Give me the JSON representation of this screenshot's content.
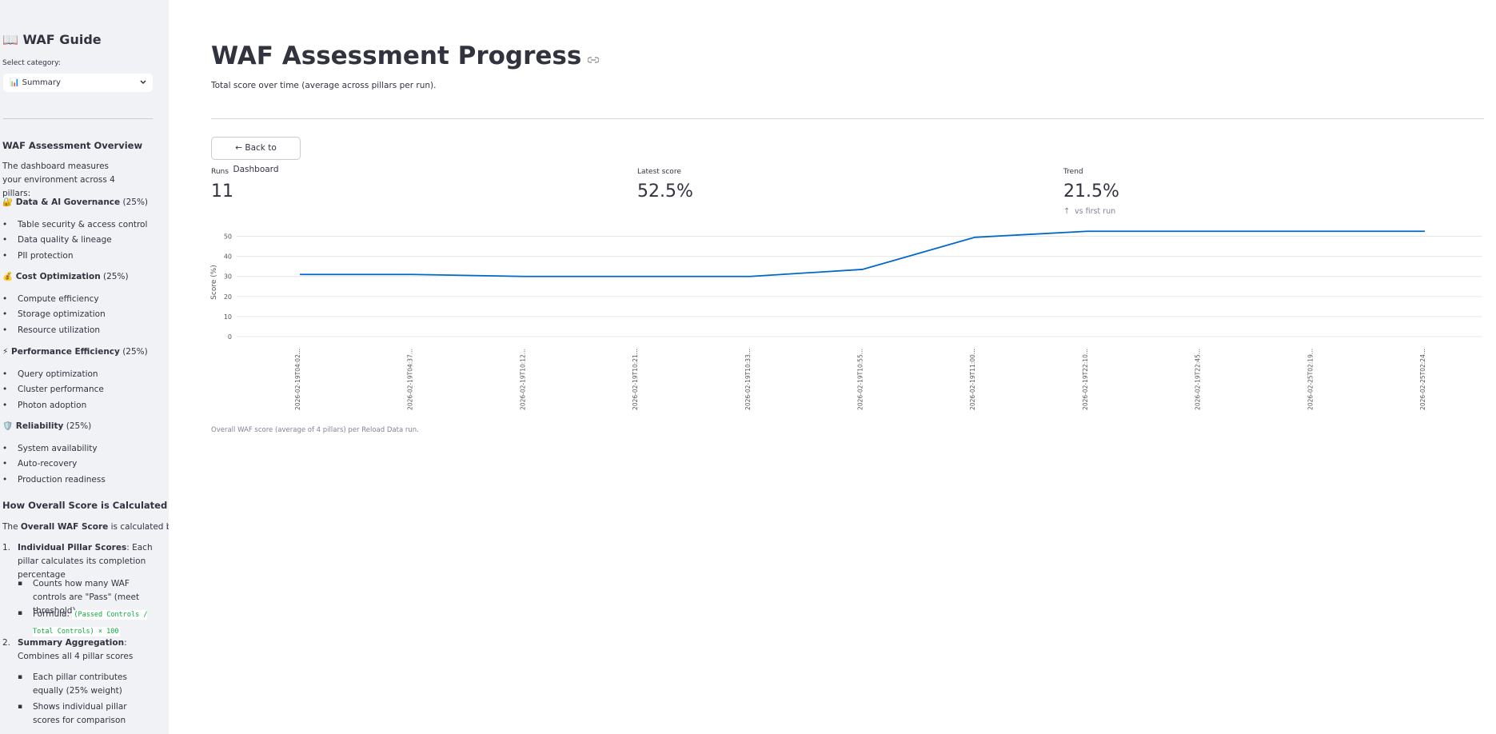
{
  "sidebar": {
    "title": "📖 WAF Guide",
    "select_label": "Select category:",
    "select_value": "📊 Summary",
    "overview_heading": "WAF Assessment Overview",
    "overview_text": "The dashboard measures your environment across 4 pillars:",
    "pillars": [
      {
        "name": "🔐 Data & AI Governance",
        "weight": " (25%)",
        "items": [
          "Table security & access control",
          "Data quality & lineage",
          "PII protection"
        ]
      },
      {
        "name": "💰 Cost Optimization",
        "weight": " (25%)",
        "items": [
          "Compute efficiency",
          "Storage optimization",
          "Resource utilization"
        ]
      },
      {
        "name": "⚡ Performance Efficiency",
        "weight": " (25%)",
        "items": [
          "Query optimization",
          "Cluster performance",
          "Photon adoption"
        ]
      },
      {
        "name": "🛡️ Reliability",
        "weight": " (25%)",
        "items": [
          "System availability",
          "Auto-recovery",
          "Production readiness"
        ]
      }
    ],
    "calc_heading": "How Overall Score is Calculated",
    "calc_intro": {
      "pre": "The ",
      "bold": "Overall WAF Score",
      "post": " is calculated by:"
    },
    "steps": [
      {
        "number": "1.",
        "bold": "Individual Pillar Scores",
        "text": ": Each pillar calculates its completion percentage",
        "subs": [
          {
            "text": "Counts how many WAF controls are \"Pass\" (meet threshold)"
          },
          {
            "text": "Formula: ",
            "code": "(Passed Controls / Total Controls) × 100"
          }
        ]
      },
      {
        "number": "2.",
        "bold": "Summary Aggregation",
        "text": ": Combines all 4 pillar scores",
        "subs": [
          {
            "text": "Each pillar contributes equally (25% weight)"
          },
          {
            "text": "Shows individual pillar scores for comparison"
          }
        ]
      }
    ]
  },
  "main": {
    "title": "WAF Assessment Progress",
    "subtitle": "Total score over time (average across pillars per run).",
    "button": "← Back to Dashboard",
    "metrics": [
      {
        "label": "Runs",
        "value": "11"
      },
      {
        "label": "Latest score",
        "value": "52.5%"
      },
      {
        "label": "Trend",
        "value": "21.5%",
        "delta": "vs first run"
      }
    ],
    "caption": "Overall WAF score (average of 4 pillars) per Reload Data run."
  },
  "chart_data": {
    "type": "line",
    "y_label": "Score (%)",
    "categories": [
      "2026-02-19T04:02...",
      "2026-02-19T04:37...",
      "2026-02-19T10:12...",
      "2026-02-19T10:21...",
      "2026-02-19T10:33...",
      "2026-02-19T10:55...",
      "2026-02-19T11:00...",
      "2026-02-19T22:10...",
      "2026-02-19T22:45...",
      "2026-02-25T02:19...",
      "2026-02-25T02:24..."
    ],
    "values": [
      31,
      31,
      30,
      30,
      30,
      33.5,
      49.5,
      52.5,
      52.5,
      52.5,
      52.5
    ],
    "color": "#0068c9",
    "ylim": [
      0,
      55
    ],
    "yticks": [
      0,
      10,
      20,
      30,
      40,
      50
    ],
    "grid": true
  }
}
